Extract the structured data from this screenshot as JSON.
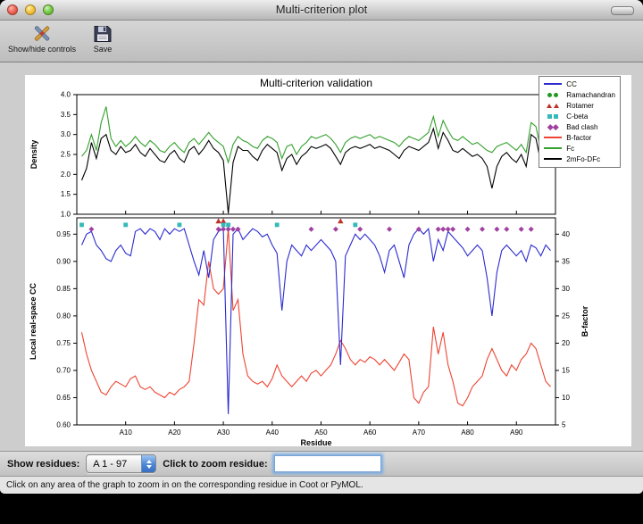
{
  "window": {
    "title": "Multi-criterion plot"
  },
  "toolbar": {
    "buttons": [
      {
        "label": "Show/hide controls",
        "icon": "tools-icon"
      },
      {
        "label": "Save",
        "icon": "save-icon"
      }
    ]
  },
  "controls": {
    "show_residues_label": "Show residues:",
    "chain_selector_value": "A  1 - 97",
    "zoom_label": "Click to zoom residue:",
    "zoom_input_value": ""
  },
  "status_bar": {
    "text": "Click on any area of the graph to zoom in on the corresponding residue in Coot or PyMOL."
  },
  "chart_data": {
    "type": "line",
    "title": "Multi-criterion validation",
    "xlabel": "Residue",
    "x_range": [
      0,
      98
    ],
    "xticks": {
      "positions": [
        10,
        20,
        30,
        40,
        50,
        60,
        70,
        80,
        90
      ],
      "labels": [
        "A10",
        "A20",
        "A30",
        "A40",
        "A50",
        "A60",
        "A70",
        "A80",
        "A90"
      ]
    },
    "top_plot": {
      "ylabel": "Density",
      "ylim": [
        1.0,
        4.0
      ],
      "yticks": {
        "values": [
          1.0,
          1.5,
          2.0,
          2.5,
          3.0,
          3.5,
          4.0
        ],
        "labels": [
          "1.0",
          "1.5",
          "2.0",
          "2.5",
          "3.0",
          "3.5",
          "4.0"
        ]
      },
      "series": [
        {
          "name": "Fc",
          "color": "#33a02c",
          "values": [
            2.45,
            2.6,
            3.0,
            2.6,
            3.3,
            3.7,
            2.9,
            2.7,
            2.85,
            2.7,
            2.8,
            2.95,
            2.8,
            2.7,
            2.85,
            2.75,
            2.6,
            2.55,
            2.7,
            2.8,
            2.65,
            2.55,
            2.8,
            2.9,
            2.75,
            2.9,
            3.05,
            2.9,
            2.8,
            2.7,
            2.3,
            2.75,
            2.95,
            2.85,
            2.8,
            2.7,
            2.65,
            2.85,
            2.95,
            2.9,
            2.8,
            2.4,
            2.7,
            2.75,
            2.5,
            2.7,
            2.8,
            2.95,
            2.9,
            2.95,
            3.0,
            2.9,
            2.75,
            2.55,
            2.8,
            2.9,
            2.95,
            2.9,
            2.95,
            3.0,
            2.9,
            2.95,
            2.9,
            2.85,
            2.8,
            2.7,
            2.85,
            2.95,
            2.9,
            2.85,
            2.95,
            3.05,
            3.45,
            2.95,
            3.35,
            3.1,
            2.9,
            2.85,
            2.95,
            2.85,
            2.75,
            2.8,
            2.7,
            2.6,
            2.55,
            2.7,
            2.75,
            2.8,
            2.7,
            2.6,
            2.75,
            2.55,
            3.3,
            3.2,
            2.6,
            3.4,
            3.3
          ]
        },
        {
          "name": "2mFo-DFc",
          "color": "#000000",
          "values": [
            1.85,
            2.15,
            2.8,
            2.4,
            2.9,
            3.0,
            2.6,
            2.5,
            2.7,
            2.55,
            2.6,
            2.75,
            2.55,
            2.45,
            2.65,
            2.5,
            2.35,
            2.3,
            2.5,
            2.6,
            2.4,
            2.3,
            2.6,
            2.7,
            2.5,
            2.65,
            2.85,
            2.65,
            2.55,
            2.35,
            1.02,
            2.3,
            2.7,
            2.6,
            2.6,
            2.45,
            2.35,
            2.6,
            2.75,
            2.65,
            2.55,
            2.1,
            2.4,
            2.5,
            2.25,
            2.45,
            2.55,
            2.7,
            2.65,
            2.7,
            2.75,
            2.65,
            2.45,
            2.25,
            2.55,
            2.65,
            2.7,
            2.65,
            2.7,
            2.75,
            2.65,
            2.7,
            2.65,
            2.6,
            2.5,
            2.4,
            2.6,
            2.7,
            2.65,
            2.6,
            2.7,
            2.8,
            3.15,
            2.65,
            3.05,
            2.85,
            2.6,
            2.55,
            2.65,
            2.55,
            2.45,
            2.5,
            2.4,
            2.2,
            1.65,
            2.2,
            2.45,
            2.55,
            2.4,
            2.3,
            2.5,
            2.2,
            3.0,
            2.9,
            2.3,
            3.1,
            3.0
          ]
        }
      ]
    },
    "bottom_plot": {
      "ylabel_left": "Local real-space CC",
      "ylabel_right": "B-factor",
      "ylim_left": [
        0.6,
        0.98
      ],
      "ylim_right": [
        5,
        43
      ],
      "yticks_left": {
        "values": [
          0.6,
          0.65,
          0.7,
          0.75,
          0.8,
          0.85,
          0.9,
          0.95
        ],
        "labels": [
          "0.60",
          "0.65",
          "0.70",
          "0.75",
          "0.80",
          "0.85",
          "0.90",
          "0.95"
        ]
      },
      "yticks_right": {
        "values": [
          5,
          10,
          15,
          20,
          25,
          30,
          35,
          40
        ],
        "labels": [
          "5",
          "10",
          "15",
          "20",
          "25",
          "30",
          "35",
          "40"
        ]
      },
      "series": [
        {
          "name": "B-factor",
          "axis": "right",
          "color": "#ee4433",
          "values": [
            22,
            18,
            15,
            13,
            11,
            10.5,
            12,
            13,
            12.5,
            12,
            13.5,
            14,
            12,
            11.5,
            12,
            11,
            10.5,
            10,
            11,
            10.5,
            11.5,
            12,
            13,
            20,
            28,
            27,
            35,
            30,
            29,
            30,
            41,
            26,
            28,
            18,
            14,
            13,
            12.5,
            13,
            12,
            13.5,
            16,
            14,
            13,
            12,
            13,
            14,
            13,
            14.5,
            15,
            14,
            15,
            16,
            18,
            20.5,
            19,
            17,
            16,
            17,
            16.5,
            17.5,
            17,
            16,
            17,
            16,
            15,
            16.5,
            18,
            17,
            10,
            9,
            11,
            12,
            23,
            18,
            22,
            16,
            13,
            9,
            8.5,
            10,
            12,
            13,
            14,
            17,
            19,
            17,
            15,
            14,
            16,
            15,
            17,
            18,
            20,
            19,
            16,
            13,
            12
          ]
        },
        {
          "name": "CC",
          "axis": "left",
          "color": "#2b2bd0",
          "values": [
            0.93,
            0.95,
            0.955,
            0.93,
            0.92,
            0.905,
            0.9,
            0.92,
            0.93,
            0.915,
            0.91,
            0.955,
            0.96,
            0.95,
            0.96,
            0.955,
            0.94,
            0.96,
            0.95,
            0.96,
            0.955,
            0.96,
            0.93,
            0.9,
            0.875,
            0.92,
            0.87,
            0.94,
            0.955,
            0.96,
            0.62,
            0.95,
            0.96,
            0.94,
            0.95,
            0.96,
            0.955,
            0.945,
            0.95,
            0.93,
            0.915,
            0.81,
            0.9,
            0.93,
            0.92,
            0.91,
            0.93,
            0.92,
            0.93,
            0.94,
            0.93,
            0.92,
            0.9,
            0.71,
            0.91,
            0.93,
            0.95,
            0.94,
            0.95,
            0.94,
            0.93,
            0.91,
            0.88,
            0.92,
            0.93,
            0.9,
            0.87,
            0.93,
            0.95,
            0.96,
            0.95,
            0.96,
            0.9,
            0.94,
            0.92,
            0.955,
            0.945,
            0.935,
            0.925,
            0.91,
            0.92,
            0.93,
            0.92,
            0.87,
            0.8,
            0.88,
            0.92,
            0.93,
            0.92,
            0.91,
            0.92,
            0.9,
            0.93,
            0.925,
            0.91,
            0.93,
            0.92
          ]
        }
      ],
      "markers": [
        {
          "name": "Rotamer",
          "shape": "triangle",
          "color": "#c03028",
          "y": 0.974,
          "residues": [
            29,
            30,
            54
          ]
        },
        {
          "name": "C-beta",
          "shape": "square",
          "color": "#35b8b8",
          "y": 0.967,
          "residues": [
            1,
            10,
            21,
            30,
            31,
            41,
            57
          ]
        },
        {
          "name": "Bad clash",
          "shape": "diamond",
          "color": "#a040a0",
          "y": 0.959,
          "residues": [
            3,
            29,
            30,
            31,
            32,
            33,
            48,
            53,
            58,
            64,
            70,
            74,
            75,
            76,
            77,
            80,
            83,
            86,
            88,
            91,
            93
          ]
        }
      ]
    },
    "legend": {
      "position": "upper right",
      "entries": [
        {
          "label": "CC",
          "type": "line",
          "color": "#2b2bd0"
        },
        {
          "label": "Ramachandran",
          "type": "circle",
          "color": "#1f9a1f"
        },
        {
          "label": "Rotamer",
          "type": "triangle",
          "color": "#c03028"
        },
        {
          "label": "C-beta",
          "type": "square",
          "color": "#35b8b8"
        },
        {
          "label": "Bad clash",
          "type": "diamond",
          "color": "#a040a0"
        },
        {
          "label": "B-factor",
          "type": "line",
          "color": "#ee4433"
        },
        {
          "label": "Fc",
          "type": "line",
          "color": "#33a02c"
        },
        {
          "label": "2mFo-DFc",
          "type": "line",
          "color": "#000000"
        }
      ]
    }
  }
}
